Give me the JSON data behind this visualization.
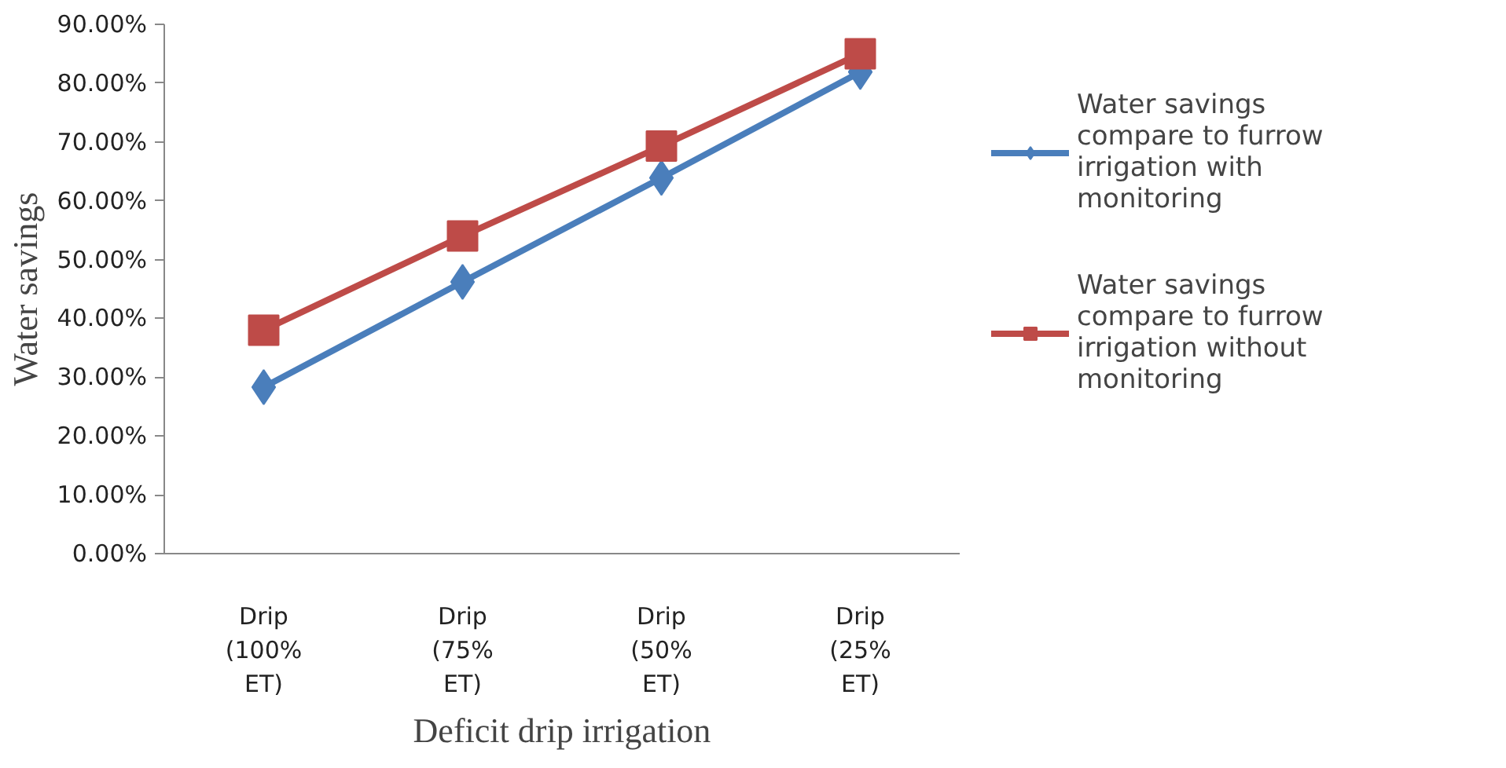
{
  "chart_data": {
    "type": "line",
    "xlabel": "Deficit drip irrigation",
    "ylabel": "Water savings",
    "categories": [
      "Drip (100% ET)",
      "Drip (75% ET)",
      "Drip (50% ET)",
      "Drip (25% ET)"
    ],
    "series": [
      {
        "name": "Water savings compare to furrow irrigation with monitoring",
        "color": "#4a7ebb",
        "marker": "diamond",
        "values": [
          28.3,
          46.2,
          63.9,
          81.9
        ]
      },
      {
        "name": "Water savings compare to furrow irrigation without monitoring",
        "color": "#be4b48",
        "marker": "square",
        "values": [
          38.0,
          54.0,
          69.3,
          85.0
        ]
      }
    ],
    "ylim": [
      0,
      90
    ],
    "yticks": [
      {
        "value": 0,
        "label": "0.00%"
      },
      {
        "value": 10,
        "label": "10.00%"
      },
      {
        "value": 20,
        "label": "20.00%"
      },
      {
        "value": 30,
        "label": "30.00%"
      },
      {
        "value": 40,
        "label": "40.00%"
      },
      {
        "value": 50,
        "label": "50.00%"
      },
      {
        "value": 60,
        "label": "60.00%"
      },
      {
        "value": 70,
        "label": "70.00%"
      },
      {
        "value": 80,
        "label": "80.00%"
      },
      {
        "value": 90,
        "label": "90.00%"
      }
    ],
    "grid": false,
    "legend": "right",
    "line_style": "solid"
  }
}
